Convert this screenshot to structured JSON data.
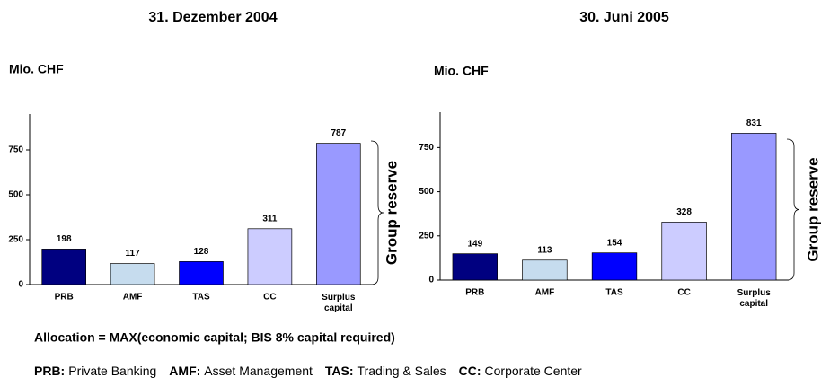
{
  "chart_data": [
    {
      "type": "bar",
      "title": "31. Dezember 2004",
      "y_label": "Mio. CHF",
      "categories": [
        "PRB",
        "AMF",
        "TAS",
        "CC",
        "Surplus capital"
      ],
      "values": [
        198,
        117,
        128,
        311,
        787
      ],
      "colors": [
        "#000080",
        "#c6dcee",
        "#0000ff",
        "#ccccff",
        "#9999ff"
      ],
      "ylim": [
        0,
        950
      ],
      "yticks": [
        0,
        250,
        500,
        750
      ],
      "annotation": "Group reserve",
      "annotation_color": "#1a1aa8"
    },
    {
      "type": "bar",
      "title": "30. Juni 2005",
      "y_label": "Mio. CHF",
      "categories": [
        "PRB",
        "AMF",
        "TAS",
        "CC",
        "Surplus capital"
      ],
      "values": [
        149,
        113,
        154,
        328,
        831
      ],
      "colors": [
        "#000080",
        "#c6dcee",
        "#0000ff",
        "#ccccff",
        "#9999ff"
      ],
      "ylim": [
        0,
        950
      ],
      "yticks": [
        0,
        250,
        500,
        750
      ],
      "annotation": "Group reserve",
      "annotation_color": "#1a1aa8"
    }
  ],
  "notes": {
    "allocation": "Allocation = MAX(economic capital; BIS 8% capital required)",
    "legend": [
      {
        "abbr": "PRB:",
        "text": "Private Banking"
      },
      {
        "abbr": "AMF:",
        "text": "Asset Management"
      },
      {
        "abbr": "TAS:",
        "text": "Trading & Sales"
      },
      {
        "abbr": "CC:",
        "text": "Corporate Center"
      }
    ]
  }
}
